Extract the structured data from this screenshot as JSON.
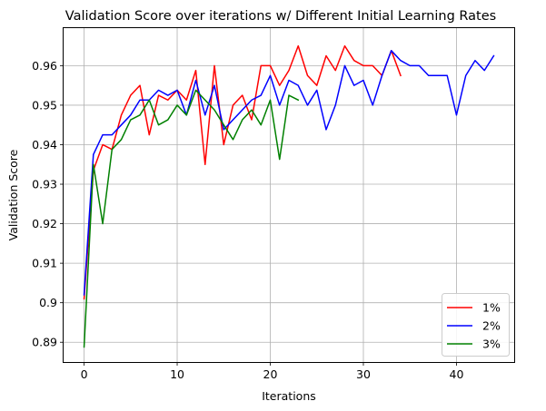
{
  "chart_data": {
    "type": "line",
    "title": "Validation Score over iterations w/ Different Initial Learning Rates",
    "xlabel": "Iterations",
    "ylabel": "Validation Score",
    "xlim": [
      -2.2,
      46.2
    ],
    "ylim": [
      0.885,
      0.9695
    ],
    "xticks": [
      0,
      10,
      20,
      30,
      40
    ],
    "yticks": [
      0.89,
      0.9,
      0.91,
      0.92,
      0.93,
      0.94,
      0.95,
      0.96
    ],
    "ytick_labels": [
      "0.89",
      "0.9",
      "0.91",
      "0.92",
      "0.93",
      "0.94",
      "0.95",
      "0.96"
    ],
    "grid": true,
    "legend_position": "lower-right",
    "series": [
      {
        "name": "1%",
        "color": "#ff0000",
        "x": [
          0,
          1,
          2,
          3,
          4,
          5,
          6,
          7,
          8,
          9,
          10,
          11,
          12,
          13,
          14,
          15,
          16,
          17,
          18,
          19,
          20,
          21,
          22,
          23,
          24,
          25,
          26,
          27,
          28,
          29,
          30,
          31,
          32,
          33,
          34
        ],
        "values": [
          0.901,
          0.9335,
          0.94,
          0.9388,
          0.9475,
          0.9525,
          0.955,
          0.9425,
          0.9525,
          0.9513,
          0.9538,
          0.9513,
          0.9588,
          0.935,
          0.96,
          0.94,
          0.95,
          0.9525,
          0.9463,
          0.96,
          0.96,
          0.955,
          0.9588,
          0.965,
          0.9575,
          0.955,
          0.9625,
          0.9588,
          0.965,
          0.9613,
          0.96,
          0.96,
          0.9575,
          0.9638,
          0.9575
        ]
      },
      {
        "name": "2%",
        "color": "#0000ff",
        "x": [
          0,
          1,
          2,
          3,
          4,
          5,
          6,
          7,
          8,
          9,
          10,
          11,
          12,
          13,
          14,
          15,
          16,
          17,
          18,
          19,
          20,
          21,
          22,
          23,
          24,
          25,
          26,
          27,
          28,
          29,
          30,
          31,
          32,
          33,
          34,
          35,
          36,
          37,
          38,
          39,
          40,
          41,
          42,
          43,
          44
        ],
        "values": [
          0.902,
          0.9375,
          0.9425,
          0.9425,
          0.945,
          0.9475,
          0.9513,
          0.9513,
          0.9538,
          0.9525,
          0.9538,
          0.9475,
          0.9563,
          0.9475,
          0.955,
          0.9438,
          0.9463,
          0.9488,
          0.9513,
          0.9525,
          0.9575,
          0.95,
          0.9563,
          0.955,
          0.95,
          0.9538,
          0.9438,
          0.95,
          0.96,
          0.955,
          0.9563,
          0.95,
          0.9575,
          0.9638,
          0.9613,
          0.96,
          0.96,
          0.9575,
          0.9575,
          0.9575,
          0.9475,
          0.9575,
          0.9613,
          0.9588,
          0.9625
        ]
      },
      {
        "name": "3%",
        "color": "#008000",
        "x": [
          0,
          1,
          2,
          3,
          4,
          5,
          6,
          7,
          8,
          9,
          10,
          11,
          12,
          13,
          14,
          15,
          16,
          17,
          18,
          19,
          20,
          21,
          22,
          23
        ],
        "values": [
          0.8888,
          0.935,
          0.92,
          0.9388,
          0.9413,
          0.9463,
          0.9475,
          0.9513,
          0.945,
          0.9463,
          0.95,
          0.9475,
          0.9538,
          0.9513,
          0.9488,
          0.945,
          0.9413,
          0.9463,
          0.9488,
          0.945,
          0.9513,
          0.9363,
          0.9525,
          0.9513
        ]
      }
    ]
  }
}
